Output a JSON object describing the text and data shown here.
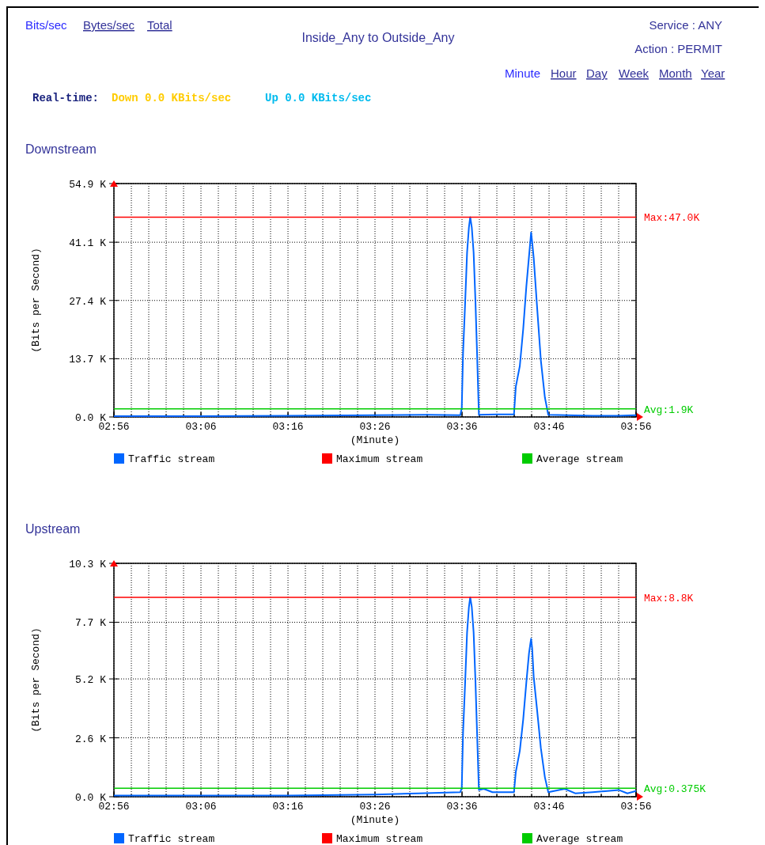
{
  "chart_data": [
    {
      "type": "other",
      "title": "Inside_Any to Outside_Any",
      "annotations": [
        "Bits/sec",
        "Bytes/sec",
        "Total",
        "Service : ANY",
        "Action : PERMIT",
        "Minute",
        "Hour",
        "Day",
        "Week",
        "Month",
        "Year",
        "Real-time:",
        "Down 0.0 KBits/sec",
        "Up 0.0 KBits/sec"
      ]
    },
    {
      "type": "line",
      "title": "Downstream",
      "xlabel": "(Minute)",
      "ylabel": "(Bits per Second)",
      "xlim": [
        2.9333,
        3.9333
      ],
      "ylim": [
        0,
        54.9
      ],
      "xticks": [
        {
          "value": 2.9333,
          "label": "02:56"
        },
        {
          "value": 2.9667,
          "label": null
        },
        {
          "value": 3.0,
          "label": null
        },
        {
          "value": 3.0333,
          "label": null
        },
        {
          "value": 3.0667,
          "label": null
        },
        {
          "value": 3.1,
          "label": "03:06"
        },
        {
          "value": 3.1333,
          "label": null
        },
        {
          "value": 3.1667,
          "label": null
        },
        {
          "value": 3.2,
          "label": null
        },
        {
          "value": 3.2333,
          "label": null
        },
        {
          "value": 3.2667,
          "label": "03:16"
        },
        {
          "value": 3.3,
          "label": null
        },
        {
          "value": 3.3333,
          "label": null
        },
        {
          "value": 3.3667,
          "label": null
        },
        {
          "value": 3.4,
          "label": null
        },
        {
          "value": 3.4333,
          "label": "03:26"
        },
        {
          "value": 3.4667,
          "label": null
        },
        {
          "value": 3.5,
          "label": null
        },
        {
          "value": 3.5333,
          "label": null
        },
        {
          "value": 3.5667,
          "label": null
        },
        {
          "value": 3.6,
          "label": "03:36"
        },
        {
          "value": 3.6333,
          "label": null
        },
        {
          "value": 3.6667,
          "label": null
        },
        {
          "value": 3.7,
          "label": null
        },
        {
          "value": 3.7333,
          "label": null
        },
        {
          "value": 3.7667,
          "label": "03:46"
        },
        {
          "value": 3.8,
          "label": null
        },
        {
          "value": 3.8333,
          "label": null
        },
        {
          "value": 3.8667,
          "label": null
        },
        {
          "value": 3.9,
          "label": null
        },
        {
          "value": 3.9333,
          "label": "03:56"
        }
      ],
      "yticks": [
        {
          "value": 0,
          "label": "0.0 K"
        },
        {
          "value": 13.7,
          "label": "13.7 K"
        },
        {
          "value": 27.4,
          "label": "27.4 K"
        },
        {
          "value": 41.1,
          "label": "41.1 K"
        },
        {
          "value": 54.9,
          "label": "54.9 K"
        }
      ],
      "grid": true,
      "legend": "bottom",
      "series": [
        {
          "name": "Traffic stream",
          "color": "#0066ff",
          "x": [
            2.9333,
            3.1,
            3.2667,
            3.4333,
            3.5333,
            3.5967,
            3.5995,
            3.602,
            3.606,
            3.6097,
            3.6132,
            3.6157,
            3.6187,
            3.6222,
            3.6258,
            3.6288,
            3.6323,
            3.6667,
            3.6995,
            3.703,
            3.7107,
            3.7172,
            3.7232,
            3.7283,
            3.7308,
            3.7323,
            3.7343,
            3.7373,
            3.7435,
            3.751,
            3.7587,
            3.7652,
            3.8,
            3.85,
            3.9,
            3.9333
          ],
          "values": [
            0.2,
            0.2,
            0.3,
            0.4,
            0.5,
            0.4,
            2.1,
            15.1,
            26.9,
            38.7,
            44.6,
            47.0,
            44.6,
            38.7,
            26.9,
            15.1,
            0.5,
            0.6,
            0.6,
            7.1,
            12.0,
            20.7,
            30.7,
            37.8,
            41.2,
            43.4,
            41.2,
            37.4,
            26.3,
            13.3,
            4.6,
            0.5,
            0.4,
            0.3,
            0.3,
            0.4
          ]
        },
        {
          "name": "Maximum stream",
          "color": "#ff0000",
          "x": [
            2.9333,
            3.9333
          ],
          "values": [
            47.0,
            47.0
          ]
        },
        {
          "name": "Average stream",
          "color": "#00cc00",
          "x": [
            2.9333,
            3.9333
          ],
          "values": [
            1.9,
            1.9
          ]
        }
      ],
      "annotations": [
        "Max:47.0K",
        "Avg:1.9K"
      ]
    },
    {
      "type": "line",
      "title": "Upstream",
      "xlabel": "(Minute)",
      "ylabel": "(Bits per Second)",
      "xlim": [
        2.9333,
        3.9333
      ],
      "ylim": [
        0,
        10.3
      ],
      "xticks": [
        {
          "value": 2.9333,
          "label": "02:56"
        },
        {
          "value": 2.9667,
          "label": null
        },
        {
          "value": 3.0,
          "label": null
        },
        {
          "value": 3.0333,
          "label": null
        },
        {
          "value": 3.0667,
          "label": null
        },
        {
          "value": 3.1,
          "label": "03:06"
        },
        {
          "value": 3.1333,
          "label": null
        },
        {
          "value": 3.1667,
          "label": null
        },
        {
          "value": 3.2,
          "label": null
        },
        {
          "value": 3.2333,
          "label": null
        },
        {
          "value": 3.2667,
          "label": "03:16"
        },
        {
          "value": 3.3,
          "label": null
        },
        {
          "value": 3.3333,
          "label": null
        },
        {
          "value": 3.3667,
          "label": null
        },
        {
          "value": 3.4,
          "label": null
        },
        {
          "value": 3.4333,
          "label": "03:26"
        },
        {
          "value": 3.4667,
          "label": null
        },
        {
          "value": 3.5,
          "label": null
        },
        {
          "value": 3.5333,
          "label": null
        },
        {
          "value": 3.5667,
          "label": null
        },
        {
          "value": 3.6,
          "label": "03:36"
        },
        {
          "value": 3.6333,
          "label": null
        },
        {
          "value": 3.6667,
          "label": null
        },
        {
          "value": 3.7,
          "label": null
        },
        {
          "value": 3.7333,
          "label": null
        },
        {
          "value": 3.7667,
          "label": "03:46"
        },
        {
          "value": 3.8,
          "label": null
        },
        {
          "value": 3.8333,
          "label": null
        },
        {
          "value": 3.8667,
          "label": null
        },
        {
          "value": 3.9,
          "label": null
        },
        {
          "value": 3.9333,
          "label": "03:56"
        }
      ],
      "yticks": [
        {
          "value": 0,
          "label": "0.0 K"
        },
        {
          "value": 2.6,
          "label": "2.6 K"
        },
        {
          "value": 5.2,
          "label": "5.2 K"
        },
        {
          "value": 7.7,
          "label": "7.7 K"
        },
        {
          "value": 10.3,
          "label": "10.3 K"
        }
      ],
      "grid": true,
      "legend": "bottom",
      "series": [
        {
          "name": "Traffic stream",
          "color": "#0066ff",
          "x": [
            2.9333,
            3.1,
            3.2667,
            3.4333,
            3.5167,
            3.5967,
            3.5995,
            3.602,
            3.606,
            3.6097,
            3.6132,
            3.6157,
            3.6187,
            3.6222,
            3.6258,
            3.6288,
            3.6323,
            3.6417,
            3.6583,
            3.6995,
            3.703,
            3.7107,
            3.7172,
            3.7232,
            3.7283,
            3.7308,
            3.7323,
            3.7343,
            3.7373,
            3.7435,
            3.751,
            3.7587,
            3.7652,
            3.7967,
            3.8167,
            3.85,
            3.9,
            3.9167,
            3.9333
          ],
          "values": [
            0.05,
            0.05,
            0.05,
            0.1,
            0.15,
            0.2,
            0.39,
            2.84,
            5.05,
            7.26,
            8.37,
            8.8,
            8.37,
            7.26,
            5.05,
            2.84,
            0.3,
            0.35,
            0.2,
            0.2,
            1.09,
            2.03,
            3.42,
            5.05,
            6.33,
            6.74,
            6.97,
            6.56,
            5.28,
            3.89,
            2.14,
            0.86,
            0.2,
            0.35,
            0.15,
            0.2,
            0.3,
            0.15,
            0.25
          ]
        },
        {
          "name": "Maximum stream",
          "color": "#ff0000",
          "x": [
            2.9333,
            3.9333
          ],
          "values": [
            8.8,
            8.8
          ]
        },
        {
          "name": "Average stream",
          "color": "#00cc00",
          "x": [
            2.9333,
            3.9333
          ],
          "values": [
            0.375,
            0.375
          ]
        }
      ],
      "annotations": [
        "Max:8.8K",
        "Avg:0.375K"
      ]
    }
  ]
}
